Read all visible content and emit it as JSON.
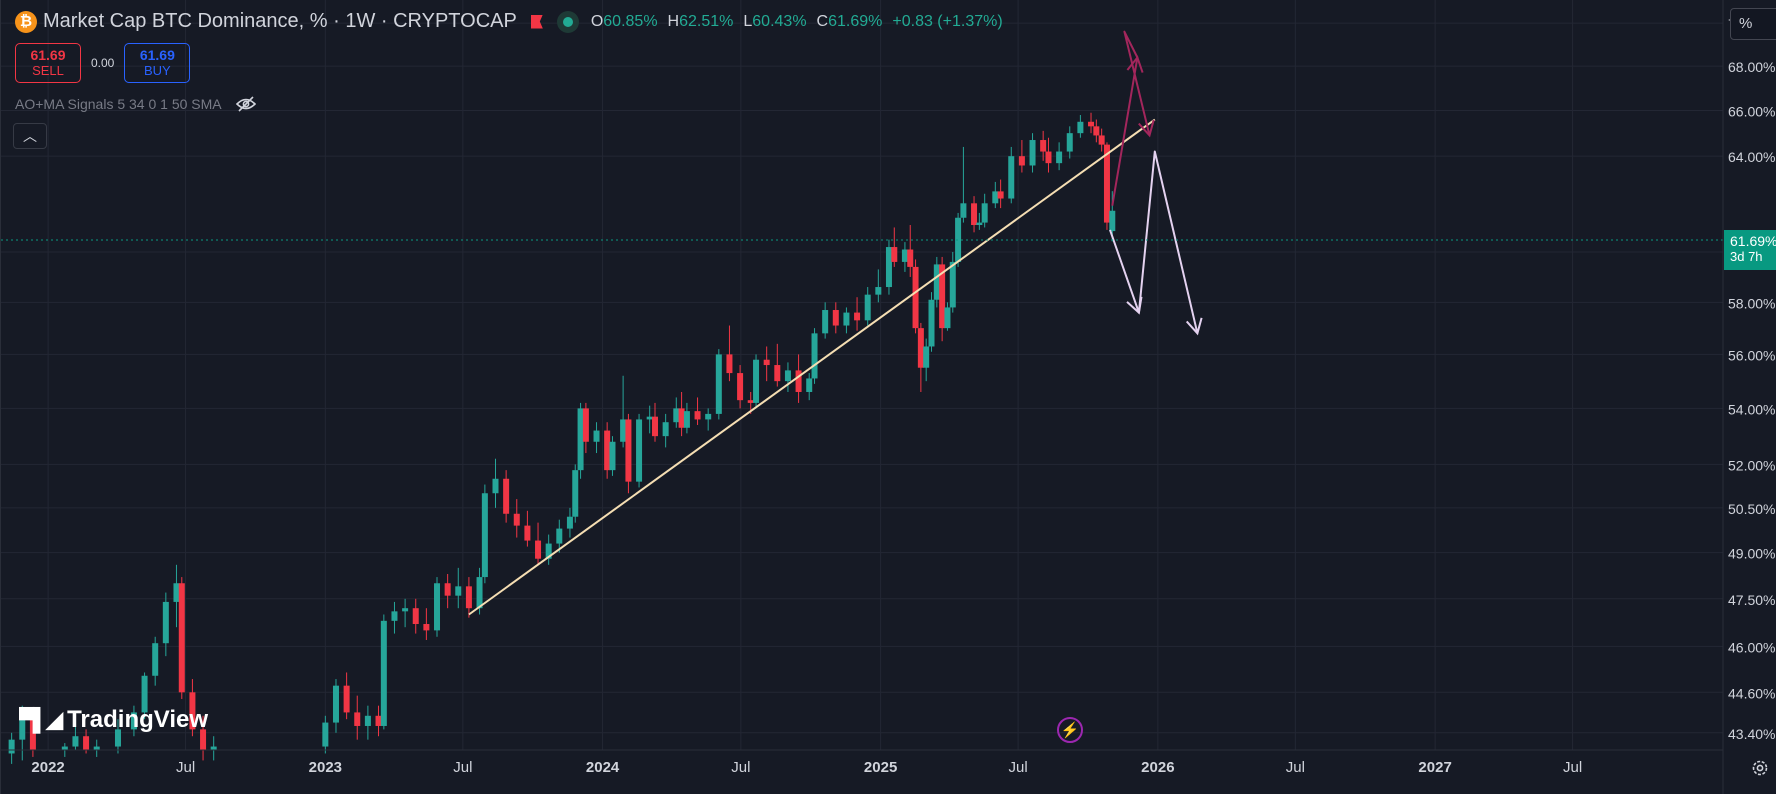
{
  "header": {
    "symbol_icon": "bitcoin-icon",
    "title": "Market Cap BTC Dominance, % · 1W · CRYPTOCAP",
    "ohlc": {
      "o_label": "O",
      "o": "60.85%",
      "h_label": "H",
      "h": "62.51%",
      "l_label": "L",
      "l": "60.43%",
      "c_label": "C",
      "c": "61.69%",
      "change": "+0.83 (+1.37%)"
    }
  },
  "trade": {
    "sell_price": "61.69",
    "sell_label": "SELL",
    "spread": "0.00",
    "buy_price": "61.69",
    "buy_label": "BUY"
  },
  "indicator": {
    "label": "AO+MA Signals 5 34 0 1 50 SMA",
    "icon": "eye-hidden-icon"
  },
  "collapse_icon": "chevron-up-icon",
  "scale_button": "%",
  "current_price": {
    "value": "61.69%",
    "countdown": "3d 7h"
  },
  "brand": "TradingView",
  "colors": {
    "background": "#161a25",
    "up": "#26a69a",
    "down": "#f23645",
    "trendline": "#f5deb3",
    "arrow_bull": "#a3265c",
    "arrow_bear": "#e4d2f0",
    "price_tag": "#089981"
  },
  "chart_data": {
    "type": "candlestick",
    "title": "Market Cap BTC Dominance, %",
    "interval": "1W",
    "y_axis": {
      "scale": "log",
      "ticks": [
        "43.40%",
        "44.60%",
        "46.00%",
        "47.50%",
        "49.00%",
        "50.50%",
        "52.00%",
        "54.00%",
        "56.00%",
        "58.00%",
        "60.00%",
        "64.00%",
        "66.00%",
        "68.00%",
        "70.00%"
      ],
      "range": [
        42.9,
        71.1
      ]
    },
    "x_axis": {
      "ticks": [
        "2022",
        "Jul",
        "2023",
        "Jul",
        "2024",
        "Jul",
        "2025",
        "Jul",
        "2026",
        "Jul",
        "2027",
        "Jul"
      ],
      "tick_dates": [
        "2022-01-01",
        "2022-07-01",
        "2023-01-01",
        "2023-07-01",
        "2024-01-01",
        "2024-07-01",
        "2025-01-01",
        "2025-07-01",
        "2026-01-01",
        "2026-07-01",
        "2027-01-01",
        "2027-07-01"
      ],
      "range": [
        "2021-10-31",
        "2028-01-15"
      ]
    },
    "grid": true,
    "candles": [
      [
        "2021-11-14",
        42.8,
        43.4,
        42.5,
        43.2
      ],
      [
        "2021-11-28",
        43.2,
        44.2,
        42.6,
        43.8
      ],
      [
        "2021-12-12",
        43.8,
        44.0,
        42.7,
        42.9
      ],
      [
        "2022-01-23",
        42.9,
        43.1,
        42.7,
        43.0
      ],
      [
        "2022-02-06",
        43.0,
        43.6,
        42.9,
        43.3
      ],
      [
        "2022-02-20",
        43.3,
        43.5,
        42.8,
        42.9
      ],
      [
        "2022-03-06",
        42.9,
        43.2,
        42.7,
        43.0
      ],
      [
        "2022-04-03",
        43.0,
        43.8,
        42.8,
        43.5
      ],
      [
        "2022-04-24",
        43.5,
        44.2,
        43.3,
        44.0
      ],
      [
        "2022-05-08",
        44.0,
        45.2,
        43.8,
        45.1
      ],
      [
        "2022-05-22",
        45.1,
        46.3,
        44.8,
        46.1
      ],
      [
        "2022-06-05",
        46.1,
        47.7,
        45.7,
        47.4
      ],
      [
        "2022-06-19",
        47.4,
        48.6,
        46.6,
        48.0
      ],
      [
        "2022-06-26",
        48.0,
        48.2,
        44.4,
        44.6
      ],
      [
        "2022-07-10",
        44.6,
        45.0,
        43.3,
        43.5
      ],
      [
        "2022-07-24",
        43.5,
        43.9,
        42.6,
        42.9
      ],
      [
        "2022-08-07",
        42.9,
        43.3,
        42.6,
        43.0
      ],
      [
        "2023-01-01",
        43.0,
        43.9,
        42.8,
        43.7
      ],
      [
        "2023-01-15",
        43.7,
        45.0,
        43.4,
        44.8
      ],
      [
        "2023-01-29",
        44.8,
        45.2,
        43.8,
        44.0
      ],
      [
        "2023-02-12",
        44.0,
        44.5,
        43.2,
        43.6
      ],
      [
        "2023-02-26",
        43.6,
        44.2,
        43.2,
        43.9
      ],
      [
        "2023-03-12",
        43.9,
        44.2,
        43.3,
        43.6
      ],
      [
        "2023-03-19",
        43.6,
        47.0,
        43.5,
        46.8
      ],
      [
        "2023-04-02",
        46.8,
        47.4,
        46.4,
        47.1
      ],
      [
        "2023-04-16",
        47.1,
        47.5,
        46.6,
        47.2
      ],
      [
        "2023-04-30",
        47.2,
        47.5,
        46.4,
        46.7
      ],
      [
        "2023-05-14",
        46.7,
        47.2,
        46.2,
        46.5
      ],
      [
        "2023-05-28",
        46.5,
        48.2,
        46.3,
        48.0
      ],
      [
        "2023-06-11",
        48.0,
        48.3,
        47.2,
        47.6
      ],
      [
        "2023-06-25",
        47.6,
        48.5,
        47.2,
        47.9
      ],
      [
        "2023-07-09",
        47.9,
        48.2,
        46.9,
        47.2
      ],
      [
        "2023-07-23",
        47.2,
        48.5,
        47.0,
        48.2
      ],
      [
        "2023-07-30",
        48.2,
        51.3,
        48.0,
        51.0
      ],
      [
        "2023-08-13",
        51.0,
        52.2,
        50.5,
        51.5
      ],
      [
        "2023-08-27",
        51.5,
        51.8,
        50.0,
        50.3
      ],
      [
        "2023-09-10",
        50.3,
        50.8,
        49.5,
        49.9
      ],
      [
        "2023-09-24",
        49.9,
        50.4,
        49.2,
        49.4
      ],
      [
        "2023-10-08",
        49.4,
        50.0,
        48.6,
        48.8
      ],
      [
        "2023-10-22",
        48.8,
        49.6,
        48.6,
        49.3
      ],
      [
        "2023-11-05",
        49.3,
        50.1,
        49.0,
        49.8
      ],
      [
        "2023-11-19",
        49.8,
        50.5,
        49.5,
        50.2
      ],
      [
        "2023-11-26",
        50.2,
        52.0,
        50.0,
        51.8
      ],
      [
        "2023-12-03",
        51.8,
        54.2,
        51.5,
        54.0
      ],
      [
        "2023-12-10",
        54.0,
        54.2,
        52.4,
        52.8
      ],
      [
        "2023-12-24",
        52.8,
        53.5,
        52.4,
        53.2
      ],
      [
        "2024-01-07",
        53.2,
        53.5,
        51.5,
        51.8
      ],
      [
        "2024-01-14",
        51.8,
        53.0,
        51.6,
        52.8
      ],
      [
        "2024-01-28",
        52.8,
        55.2,
        52.6,
        53.6
      ],
      [
        "2024-02-04",
        53.6,
        53.8,
        51.0,
        51.4
      ],
      [
        "2024-02-18",
        51.4,
        53.8,
        51.2,
        53.6
      ],
      [
        "2024-03-03",
        53.6,
        54.1,
        53.1,
        53.7
      ],
      [
        "2024-03-10",
        53.7,
        54.2,
        52.8,
        53.0
      ],
      [
        "2024-03-24",
        53.0,
        53.8,
        52.6,
        53.5
      ],
      [
        "2024-04-07",
        53.5,
        54.4,
        53.3,
        54.0
      ],
      [
        "2024-04-14",
        54.0,
        54.6,
        53.0,
        53.3
      ],
      [
        "2024-04-21",
        53.3,
        54.2,
        53.1,
        53.9
      ],
      [
        "2024-05-05",
        53.9,
        54.4,
        53.4,
        53.6
      ],
      [
        "2024-05-19",
        53.6,
        54.0,
        53.2,
        53.8
      ],
      [
        "2024-06-02",
        53.8,
        56.2,
        53.6,
        56.0
      ],
      [
        "2024-06-16",
        56.0,
        57.1,
        55.0,
        55.3
      ],
      [
        "2024-06-30",
        55.3,
        55.6,
        54.0,
        54.3
      ],
      [
        "2024-07-14",
        54.3,
        54.6,
        53.8,
        54.2
      ],
      [
        "2024-07-21",
        54.2,
        56.0,
        54.0,
        55.8
      ],
      [
        "2024-08-04",
        55.8,
        56.3,
        55.0,
        55.6
      ],
      [
        "2024-08-18",
        55.6,
        56.4,
        54.8,
        55.0
      ],
      [
        "2024-09-01",
        55.0,
        55.7,
        54.6,
        55.4
      ],
      [
        "2024-09-15",
        55.4,
        56.0,
        54.2,
        54.6
      ],
      [
        "2024-09-29",
        54.6,
        55.3,
        54.3,
        55.1
      ],
      [
        "2024-10-06",
        55.1,
        57.0,
        54.9,
        56.8
      ],
      [
        "2024-10-20",
        56.8,
        58.0,
        56.6,
        57.7
      ],
      [
        "2024-11-03",
        57.7,
        58.0,
        56.8,
        57.1
      ],
      [
        "2024-11-17",
        57.1,
        57.8,
        56.8,
        57.6
      ],
      [
        "2024-12-01",
        57.6,
        58.2,
        56.9,
        57.3
      ],
      [
        "2024-12-15",
        57.3,
        58.6,
        57.1,
        58.3
      ],
      [
        "2024-12-29",
        58.3,
        59.3,
        58.0,
        58.6
      ],
      [
        "2025-01-12",
        58.6,
        60.5,
        58.3,
        60.2
      ],
      [
        "2025-01-19",
        60.2,
        61.0,
        59.4,
        59.6
      ],
      [
        "2025-02-02",
        59.6,
        60.4,
        59.2,
        60.1
      ],
      [
        "2025-02-09",
        60.1,
        61.1,
        59.0,
        59.4
      ],
      [
        "2025-02-16",
        59.4,
        59.7,
        56.8,
        57.0
      ],
      [
        "2025-02-23",
        57.0,
        57.2,
        54.6,
        55.5
      ],
      [
        "2025-03-02",
        55.5,
        56.6,
        55.0,
        56.3
      ],
      [
        "2025-03-09",
        56.3,
        58.4,
        56.1,
        58.1
      ],
      [
        "2025-03-16",
        58.1,
        59.8,
        57.8,
        59.5
      ],
      [
        "2025-03-23",
        59.5,
        59.8,
        56.5,
        57.0
      ],
      [
        "2025-03-30",
        57.0,
        58.0,
        56.9,
        57.8
      ],
      [
        "2025-04-06",
        57.8,
        60.0,
        57.6,
        59.6
      ],
      [
        "2025-04-13",
        59.6,
        61.6,
        59.4,
        61.4
      ],
      [
        "2025-04-20",
        61.4,
        64.4,
        61.2,
        62.0
      ],
      [
        "2025-05-04",
        62.0,
        62.3,
        60.8,
        61.1
      ],
      [
        "2025-05-11",
        61.1,
        61.6,
        60.9,
        61.2
      ],
      [
        "2025-05-18",
        61.2,
        62.4,
        61.0,
        62.0
      ],
      [
        "2025-06-01",
        62.0,
        62.9,
        61.8,
        62.5
      ],
      [
        "2025-06-08",
        62.5,
        63.0,
        61.8,
        62.2
      ],
      [
        "2025-06-22",
        62.2,
        64.4,
        62.0,
        64.0
      ],
      [
        "2025-07-06",
        64.0,
        64.7,
        63.3,
        63.6
      ],
      [
        "2025-07-20",
        63.6,
        65.0,
        63.3,
        64.7
      ],
      [
        "2025-08-03",
        64.7,
        65.1,
        63.8,
        64.2
      ],
      [
        "2025-08-10",
        64.2,
        64.8,
        63.3,
        63.7
      ],
      [
        "2025-08-24",
        63.7,
        64.6,
        63.4,
        64.2
      ],
      [
        "2025-09-07",
        64.2,
        65.3,
        63.9,
        65.0
      ],
      [
        "2025-09-21",
        65.0,
        65.8,
        64.8,
        65.5
      ],
      [
        "2025-10-05",
        65.5,
        65.9,
        65.0,
        65.3
      ],
      [
        "2025-10-12",
        65.3,
        65.6,
        64.6,
        64.9
      ],
      [
        "2025-10-19",
        64.9,
        65.2,
        64.2,
        64.5
      ],
      [
        "2025-10-26",
        64.5,
        64.6,
        60.9,
        61.2
      ],
      [
        "2025-11-02",
        60.85,
        62.51,
        60.43,
        61.69
      ]
    ],
    "annotations": {
      "trendline": [
        [
          "2023-07-09",
          47.0
        ],
        [
          "2025-12-28",
          65.6
        ]
      ],
      "bullish_path": [
        [
          "2025-11-02",
          61.9
        ],
        [
          "2025-12-05",
          68.4
        ],
        [
          "2025-11-18",
          69.6
        ],
        [
          "2025-12-21",
          64.9
        ]
      ],
      "bearish_path": [
        [
          "2025-10-30",
          60.9
        ],
        [
          "2025-12-07",
          57.6
        ],
        [
          "2025-12-28",
          64.2
        ],
        [
          "2026-02-22",
          56.8
        ]
      ]
    }
  }
}
